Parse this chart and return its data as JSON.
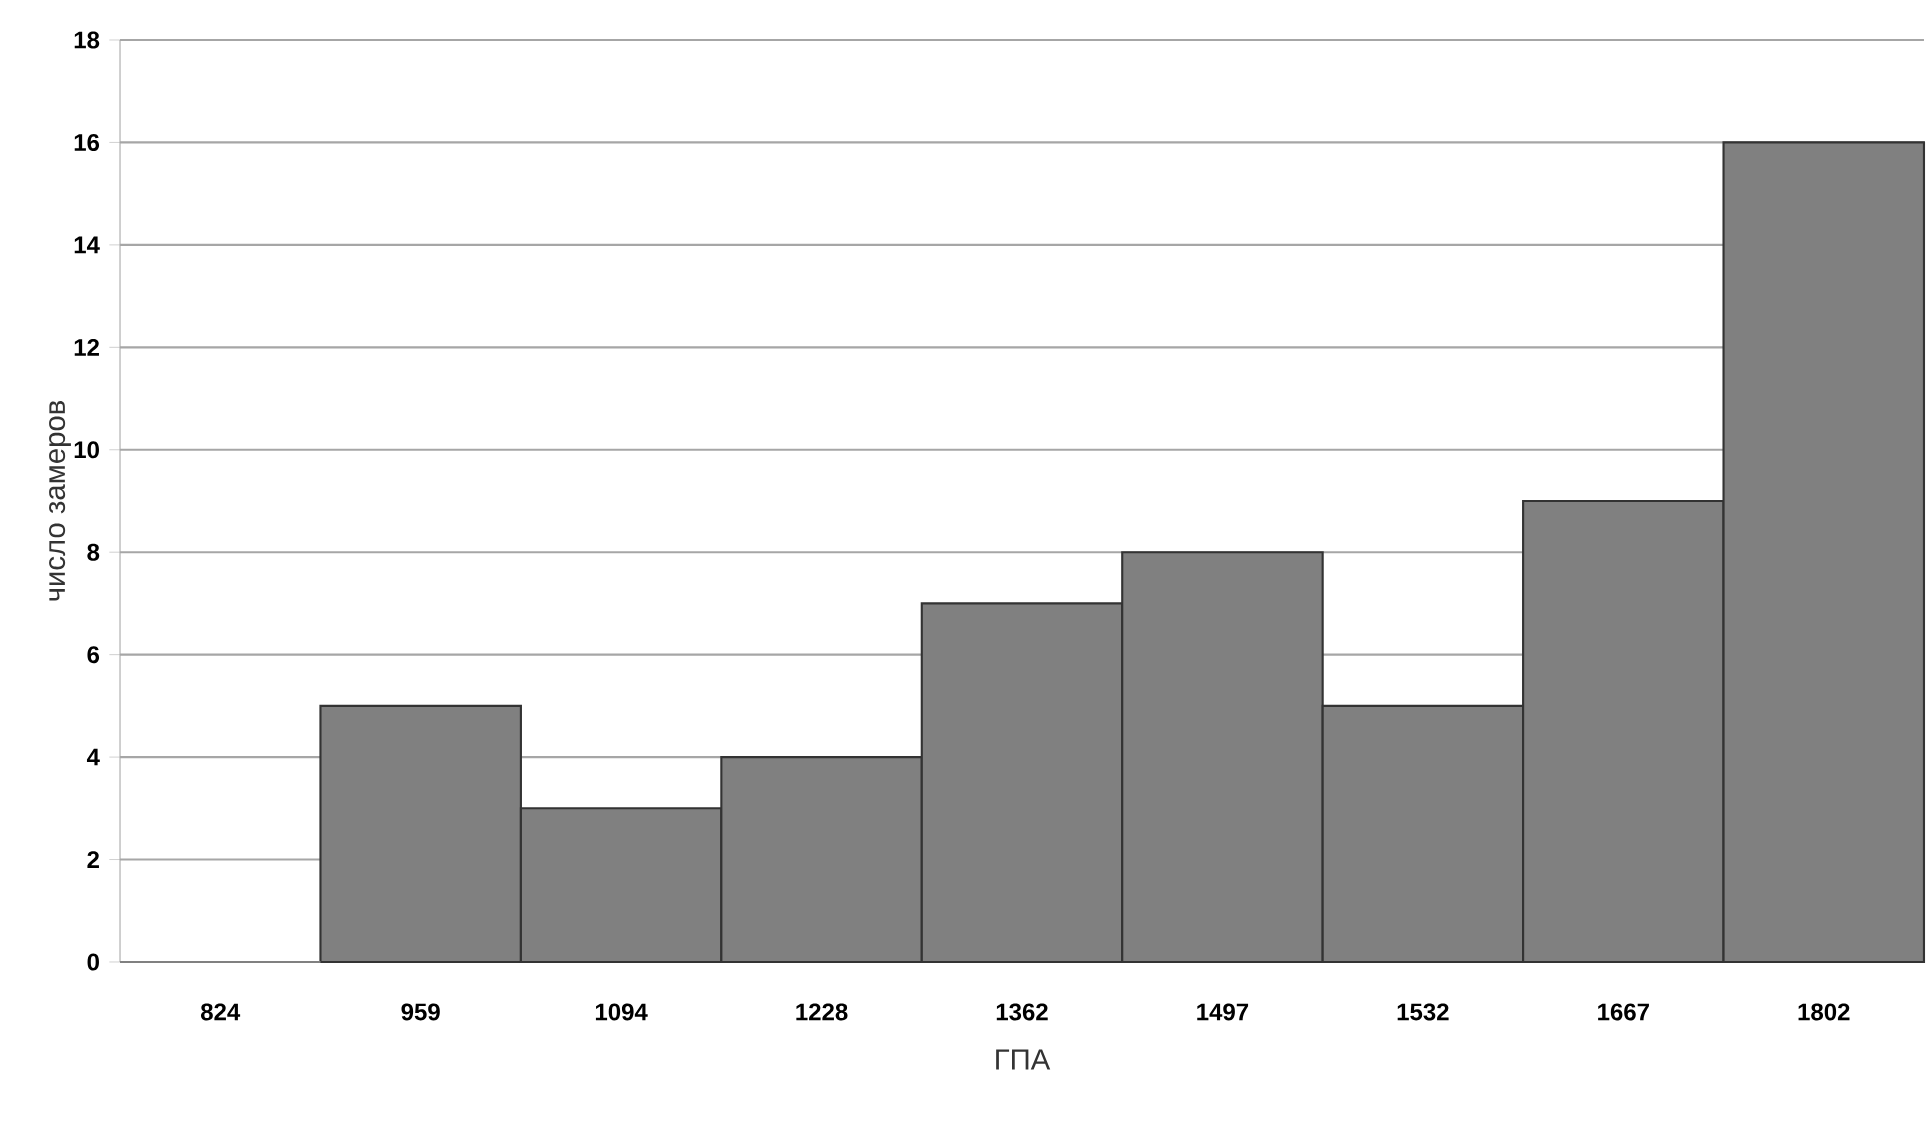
{
  "chart_data": {
    "type": "bar",
    "xlabel": "ГПА",
    "ylabel": "число замеров",
    "categories": [
      "824",
      "959",
      "1094",
      "1228",
      "1362",
      "1497",
      "1532",
      "1667",
      "1802"
    ],
    "values": [
      0,
      5,
      3,
      4,
      7,
      8,
      5,
      9,
      16
    ],
    "color": "#808080",
    "ylim": [
      0,
      18
    ],
    "yticks": [
      0,
      2,
      4,
      6,
      8,
      10,
      12,
      14,
      16,
      18
    ],
    "grid": "y"
  }
}
